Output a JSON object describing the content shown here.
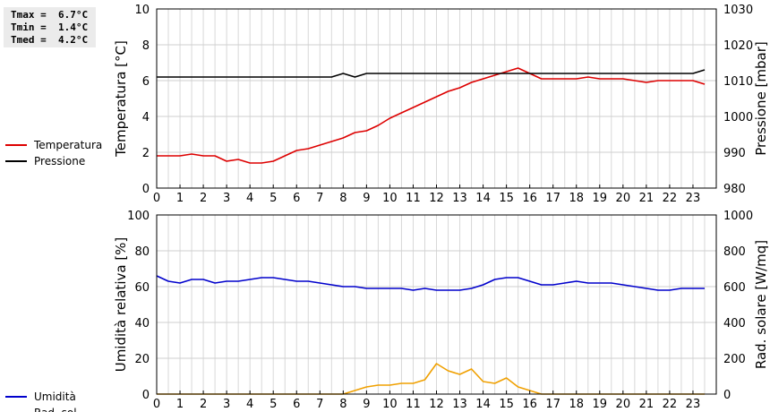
{
  "stats": {
    "tmax": "Tmax =  6.7°C",
    "tmin": "Tmin =  1.4°C",
    "tmed": "Tmed =  4.2°C"
  },
  "chart_data": [
    {
      "type": "line",
      "x_ticks": [
        "0",
        "1",
        "2",
        "3",
        "4",
        "5",
        "6",
        "7",
        "8",
        "9",
        "10",
        "11",
        "12",
        "13",
        "14",
        "15",
        "16",
        "17",
        "18",
        "19",
        "20",
        "21",
        "22",
        "23"
      ],
      "xlim": [
        0,
        24
      ],
      "left_axis": {
        "label": "Temperatura [°C]",
        "ylim": [
          0,
          10
        ],
        "ticks": [
          "0",
          "2",
          "4",
          "6",
          "8",
          "10"
        ]
      },
      "right_axis": {
        "label": "Pressione [mbar]",
        "ylim": [
          980,
          1030
        ],
        "ticks": [
          "980",
          "990",
          "1000",
          "1010",
          "1020",
          "1030"
        ]
      },
      "grid": true,
      "legend_position": "left",
      "series": [
        {
          "name": "Temperatura",
          "axis": "left",
          "color": "#dd0000",
          "x": [
            0,
            0.5,
            1,
            1.5,
            2,
            2.5,
            3,
            3.5,
            4,
            4.5,
            5,
            5.5,
            6,
            6.5,
            7,
            7.5,
            8,
            8.5,
            9,
            9.5,
            10,
            10.5,
            11,
            11.5,
            12,
            12.5,
            13,
            13.5,
            14,
            14.5,
            15,
            15.5,
            16,
            16.5,
            17,
            17.5,
            18,
            18.5,
            19,
            19.5,
            20,
            20.5,
            21,
            21.5,
            22,
            22.5,
            23,
            23.5
          ],
          "y": [
            1.8,
            1.8,
            1.8,
            1.9,
            1.8,
            1.8,
            1.5,
            1.6,
            1.4,
            1.4,
            1.5,
            1.8,
            2.1,
            2.2,
            2.4,
            2.6,
            2.8,
            3.1,
            3.2,
            3.5,
            3.9,
            4.2,
            4.5,
            4.8,
            5.1,
            5.4,
            5.6,
            5.9,
            6.1,
            6.3,
            6.5,
            6.7,
            6.4,
            6.1,
            6.1,
            6.1,
            6.1,
            6.2,
            6.1,
            6.1,
            6.1,
            6.0,
            5.9,
            6.0,
            6.0,
            6.0,
            6.0,
            5.8
          ]
        },
        {
          "name": "Pressione",
          "axis": "right",
          "color": "#000000",
          "x": [
            0,
            1,
            2,
            3,
            4,
            5,
            6,
            7,
            7.5,
            8,
            8.5,
            9,
            10,
            11,
            12,
            13,
            14,
            15,
            16,
            17,
            18,
            19,
            20,
            21,
            22,
            23,
            23.5
          ],
          "y": [
            1011,
            1011,
            1011,
            1011,
            1011,
            1011,
            1011,
            1011,
            1011,
            1012,
            1011,
            1012,
            1012,
            1012,
            1012,
            1012,
            1012,
            1012,
            1012,
            1012,
            1012,
            1012,
            1012,
            1012,
            1012,
            1012,
            1013
          ]
        }
      ]
    },
    {
      "type": "line",
      "x_ticks": [
        "0",
        "1",
        "2",
        "3",
        "4",
        "5",
        "6",
        "7",
        "8",
        "9",
        "10",
        "11",
        "12",
        "13",
        "14",
        "15",
        "16",
        "17",
        "18",
        "19",
        "20",
        "21",
        "22",
        "23"
      ],
      "xlim": [
        0,
        24
      ],
      "left_axis": {
        "label": "Umidità relativa [%]",
        "ylim": [
          0,
          100
        ],
        "ticks": [
          "0",
          "20",
          "40",
          "60",
          "80",
          "100"
        ]
      },
      "right_axis": {
        "label": "Rad. solare [W/mq]",
        "ylim": [
          0,
          1000
        ],
        "ticks": [
          "0",
          "200",
          "400",
          "600",
          "800",
          "1000"
        ]
      },
      "grid": true,
      "legend_position": "left",
      "series": [
        {
          "name": "Umidità",
          "axis": "left",
          "color": "#0000cc",
          "x": [
            0,
            0.5,
            1,
            1.5,
            2,
            2.5,
            3,
            3.5,
            4,
            4.5,
            5,
            5.5,
            6,
            6.5,
            7,
            7.5,
            8,
            8.5,
            9,
            9.5,
            10,
            10.5,
            11,
            11.5,
            12,
            12.5,
            13,
            13.5,
            14,
            14.5,
            15,
            15.5,
            16,
            16.5,
            17,
            17.5,
            18,
            18.5,
            19,
            19.5,
            20,
            20.5,
            21,
            21.5,
            22,
            22.5,
            23,
            23.5
          ],
          "y": [
            66,
            63,
            62,
            64,
            64,
            62,
            63,
            63,
            64,
            65,
            65,
            64,
            63,
            63,
            62,
            61,
            60,
            60,
            59,
            59,
            59,
            59,
            58,
            59,
            58,
            58,
            58,
            59,
            61,
            64,
            65,
            65,
            63,
            61,
            61,
            62,
            63,
            62,
            62,
            62,
            61,
            60,
            59,
            58,
            58,
            59,
            59,
            59
          ]
        },
        {
          "name": "Rad. sol.",
          "axis": "right",
          "color": "#f0a000",
          "x": [
            0,
            1,
            2,
            3,
            4,
            5,
            6,
            7,
            8,
            8.5,
            9,
            9.5,
            10,
            10.5,
            11,
            11.5,
            12,
            12.5,
            13,
            13.5,
            14,
            14.5,
            15,
            15.5,
            16,
            16.5,
            17,
            18,
            19,
            20,
            21,
            22,
            23,
            23.5
          ],
          "y": [
            0,
            0,
            0,
            0,
            0,
            0,
            0,
            0,
            0,
            20,
            40,
            50,
            50,
            60,
            60,
            80,
            170,
            130,
            110,
            140,
            70,
            60,
            90,
            40,
            20,
            0,
            0,
            0,
            0,
            0,
            0,
            0,
            0,
            0
          ]
        }
      ]
    }
  ]
}
